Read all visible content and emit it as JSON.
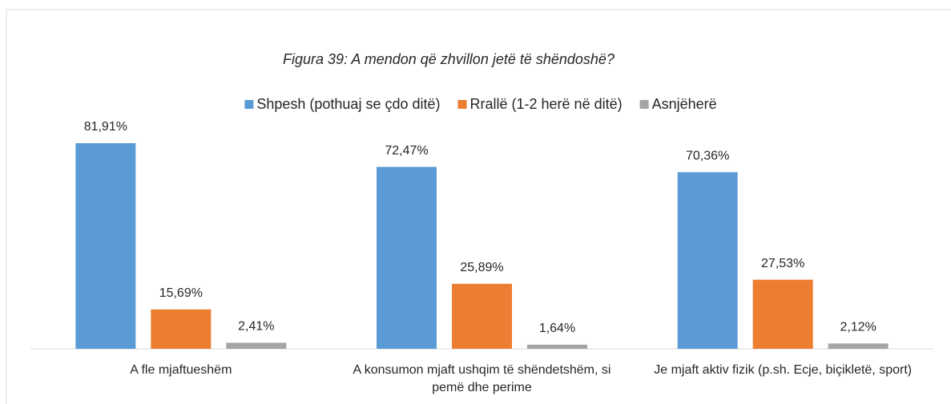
{
  "chart_data": {
    "type": "bar",
    "title": "Figura 39: A mendon që zhvillon jetë të shëndoshë?",
    "categories": [
      "A fle mjaftueshëm",
      "A konsumon mjaft ushqim të shëndetshëm, si pemë dhe perime",
      "Je mjaft aktiv fizik (p.sh. Ecje, biçikletë, sport)"
    ],
    "series": [
      {
        "name": "Shpesh (pothuaj se çdo ditë)",
        "color": "#5b9bd5",
        "values": [
          81.91,
          72.47,
          70.36
        ],
        "value_labels": [
          "81,91%",
          "72,47%",
          "70,36%"
        ]
      },
      {
        "name": "Rrallë (1-2 herë në ditë)",
        "color": "#ed7d31",
        "values": [
          15.69,
          25.89,
          27.53
        ],
        "value_labels": [
          "15,69%",
          "25,89%",
          "27,53%"
        ]
      },
      {
        "name": "Asnjëherë",
        "color": "#a5a5a5",
        "values": [
          2.41,
          1.64,
          2.12
        ],
        "value_labels": [
          "2,41%",
          "1,64%",
          "2,12%"
        ]
      }
    ],
    "legend": "top"
  }
}
